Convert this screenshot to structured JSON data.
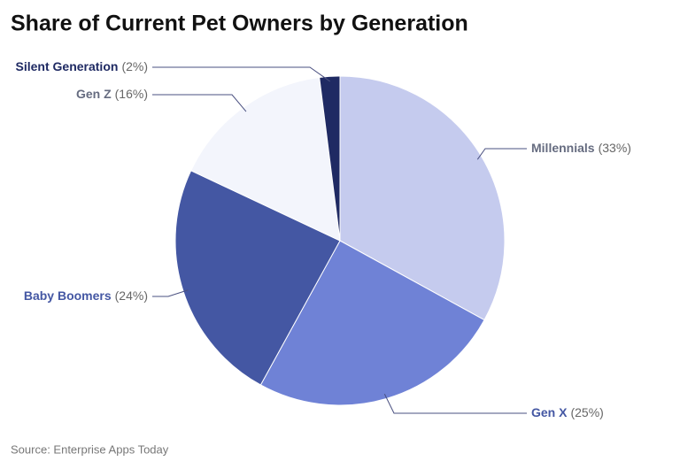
{
  "chart_data": {
    "type": "pie",
    "title": "Share of Current Pet Owners by Generation",
    "categories": [
      "Millennials",
      "Gen X",
      "Baby Boomers",
      "Gen Z",
      "Silent Generation"
    ],
    "values": [
      33,
      25,
      24,
      16,
      2
    ],
    "value_labels": [
      "(33%)",
      "(25%)",
      "(24%)",
      "(16%)",
      "(2%)"
    ],
    "colors": [
      "#c5cbee",
      "#6f82d6",
      "#4457a3",
      "#f3f5fc",
      "#1f2a63"
    ],
    "source": "Source: Enterprise Apps Today"
  }
}
